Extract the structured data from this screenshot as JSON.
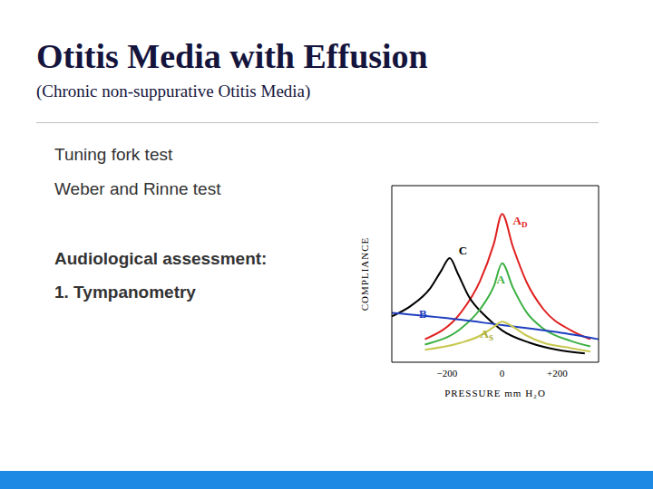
{
  "slide": {
    "title": "Otitis Media with Effusion",
    "subtitle": "(Chronic non-suppurative Otitis Media)",
    "lines": [
      "Tuning fork test",
      "Weber and Rinne test",
      "Audiological assessment:",
      "1. Tympanometry"
    ]
  },
  "chart_data": {
    "type": "line",
    "x_label": "PRESSURE mm H₂O",
    "y_label": "COMPLIANCE",
    "xlim": [
      -400,
      350
    ],
    "xticks": [
      {
        "value": -200,
        "label": "−200"
      },
      0,
      {
        "value": 200,
        "label": "+200"
      }
    ],
    "ylim": [
      0,
      10
    ],
    "tick_labels": "x",
    "grid": false,
    "series": [
      {
        "name": "AD",
        "color": "#e02020",
        "x": [
          -280,
          -150,
          -80,
          -30,
          0,
          40,
          90,
          150,
          250,
          320
        ],
        "values": [
          1.3,
          2.8,
          4.6,
          6.7,
          8.4,
          6.5,
          4.5,
          3.0,
          1.8,
          1.3
        ]
      },
      {
        "name": "C",
        "color": "#000000",
        "x": [
          -400,
          -330,
          -260,
          -220,
          -190,
          -160,
          -120,
          -60,
          0,
          100,
          200,
          300
        ],
        "values": [
          2.6,
          3.2,
          4.2,
          5.2,
          5.9,
          5.0,
          3.7,
          2.6,
          1.8,
          1.1,
          0.7,
          0.5
        ]
      },
      {
        "name": "A",
        "color": "#3cb043",
        "x": [
          -280,
          -150,
          -80,
          -30,
          0,
          40,
          90,
          150,
          250,
          320
        ],
        "values": [
          1.0,
          1.9,
          3.0,
          4.3,
          5.6,
          4.2,
          2.8,
          1.9,
          1.2,
          0.9
        ]
      },
      {
        "name": "B",
        "color": "#1f3fbf",
        "x": [
          -400,
          -200,
          0,
          200,
          350
        ],
        "values": [
          2.8,
          2.5,
          2.1,
          1.7,
          1.3
        ]
      },
      {
        "name": "AS",
        "color": "#c8c850",
        "x": [
          -280,
          -150,
          -80,
          -30,
          0,
          40,
          90,
          150,
          250,
          320
        ],
        "values": [
          0.7,
          1.1,
          1.5,
          2.0,
          2.3,
          2.0,
          1.5,
          1.1,
          0.8,
          0.6
        ]
      }
    ]
  }
}
